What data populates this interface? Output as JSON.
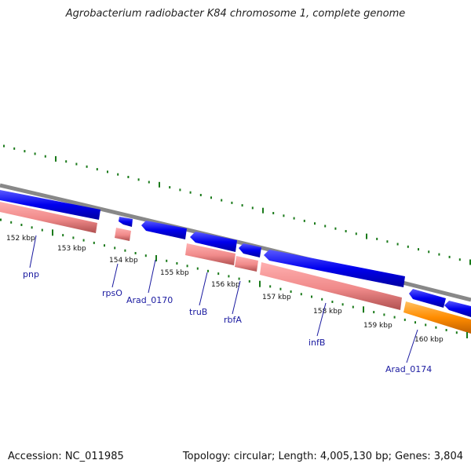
{
  "title": "Agrobacterium radiobacter K84 chromosome 1, complete genome",
  "footer": {
    "accession": "Accession: NC_011985",
    "topology": "Topology: circular; Length: 4,005,130 bp; Genes: 3,804"
  },
  "colors": {
    "backbone": "#888888",
    "cds_forward": "#0a0ae6",
    "cds_reverse_pink": "#f08a8a",
    "cds_orange": "#ff8c00",
    "gc_skew": "#1a7a1a",
    "label": "#1a1aa0"
  },
  "kbp_labels": [
    "152 kbp",
    "153 kbp",
    "154 kbp",
    "155 kbp",
    "156 kbp",
    "157 kbp",
    "158 kbp",
    "159 kbp",
    "160 kbp"
  ],
  "genes": [
    {
      "id": "pnp",
      "label": "pnp"
    },
    {
      "id": "rpsO",
      "label": "rpsO"
    },
    {
      "id": "arad-0170",
      "label": "Arad_0170"
    },
    {
      "id": "trub",
      "label": "truB"
    },
    {
      "id": "rbfa",
      "label": "rbfA"
    },
    {
      "id": "infb",
      "label": "infB"
    },
    {
      "id": "arad-0174",
      "label": "Arad_0174"
    }
  ]
}
